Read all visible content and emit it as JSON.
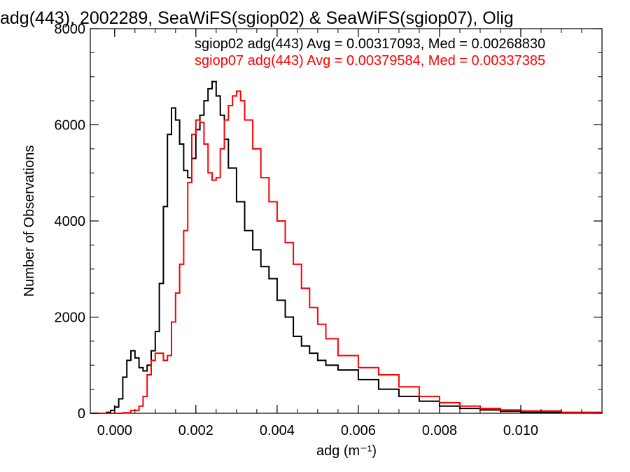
{
  "chart_data": {
    "type": "line",
    "title": "adg(443), 2002289, SeaWiFS(sgiop02) & SeaWiFS(sgiop07), Olig",
    "xlabel": "adg (m⁻¹)",
    "ylabel": "Number of Observations",
    "xlim": [
      -0.0006,
      0.012
    ],
    "ylim": [
      0,
      8000
    ],
    "xticks": [
      {
        "value": 0.0,
        "label": "0.000"
      },
      {
        "value": 0.002,
        "label": "0.002"
      },
      {
        "value": 0.004,
        "label": "0.004"
      },
      {
        "value": 0.006,
        "label": "0.006"
      },
      {
        "value": 0.008,
        "label": "0.008"
      },
      {
        "value": 0.01,
        "label": "0.010"
      }
    ],
    "yticks": [
      {
        "value": 0,
        "label": "0"
      },
      {
        "value": 2000,
        "label": "2000"
      },
      {
        "value": 4000,
        "label": "4000"
      },
      {
        "value": 6000,
        "label": "6000"
      },
      {
        "value": 8000,
        "label": "8000"
      }
    ],
    "annotations": [
      {
        "text": "sgiop02 adg(443) Avg = 0.00317093, Med = 0.00268830",
        "color": "#000000"
      },
      {
        "text": "sgiop07 adg(443) Avg = 0.00379584, Med = 0.00337385",
        "color": "#ff0000"
      }
    ],
    "series": [
      {
        "color": "#000000",
        "x": [
          -0.0006,
          -0.0004,
          -0.0002,
          -0.0001,
          0.0,
          0.0001,
          0.0002,
          0.0003,
          0.0004,
          0.0005,
          0.0006,
          0.0007,
          0.0008,
          0.0009,
          0.001,
          0.0011,
          0.0012,
          0.0013,
          0.0014,
          0.0015,
          0.0016,
          0.0017,
          0.0018,
          0.0019,
          0.002,
          0.0021,
          0.0022,
          0.0023,
          0.0024,
          0.0025,
          0.0026,
          0.0027,
          0.0028,
          0.003,
          0.0032,
          0.0034,
          0.0036,
          0.0038,
          0.004,
          0.0042,
          0.0044,
          0.0046,
          0.0048,
          0.005,
          0.0052,
          0.0055,
          0.006,
          0.0065,
          0.007,
          0.0075,
          0.008,
          0.0085,
          0.009,
          0.0095,
          0.01,
          0.011,
          0.012
        ],
        "y": [
          0,
          0,
          20,
          60,
          130,
          300,
          750,
          1100,
          1300,
          1150,
          950,
          880,
          1000,
          1300,
          1700,
          2700,
          4300,
          5800,
          6350,
          6100,
          5600,
          5050,
          4900,
          5300,
          5900,
          6200,
          6500,
          6750,
          6900,
          6600,
          6200,
          5700,
          5100,
          4400,
          3800,
          3400,
          3050,
          2800,
          2350,
          2000,
          1600,
          1400,
          1250,
          1100,
          1000,
          900,
          700,
          500,
          350,
          250,
          150,
          100,
          70,
          40,
          20,
          10,
          5
        ]
      },
      {
        "color": "#ff0000",
        "x": [
          -0.0006,
          0.0,
          0.0002,
          0.0004,
          0.0006,
          0.0007,
          0.0008,
          0.0009,
          0.001,
          0.0011,
          0.0012,
          0.0013,
          0.0014,
          0.0015,
          0.0016,
          0.0017,
          0.0018,
          0.0019,
          0.002,
          0.0021,
          0.0022,
          0.0023,
          0.0024,
          0.0025,
          0.0026,
          0.0027,
          0.0028,
          0.0029,
          0.003,
          0.0031,
          0.0032,
          0.0034,
          0.0036,
          0.0038,
          0.004,
          0.0042,
          0.0044,
          0.0046,
          0.0048,
          0.005,
          0.0052,
          0.0055,
          0.006,
          0.0065,
          0.007,
          0.0075,
          0.008,
          0.0085,
          0.009,
          0.0095,
          0.01,
          0.011,
          0.012
        ],
        "y": [
          0,
          0,
          10,
          60,
          150,
          350,
          800,
          1100,
          1250,
          1250,
          1100,
          1200,
          1900,
          2500,
          3100,
          3800,
          4800,
          5800,
          6100,
          6050,
          5600,
          5000,
          4850,
          4900,
          5500,
          6100,
          6400,
          6600,
          6700,
          6500,
          6100,
          5500,
          4900,
          4400,
          4000,
          3550,
          3100,
          2600,
          2200,
          1850,
          1550,
          1200,
          950,
          800,
          550,
          350,
          220,
          150,
          100,
          70,
          50,
          20,
          10
        ]
      }
    ]
  }
}
